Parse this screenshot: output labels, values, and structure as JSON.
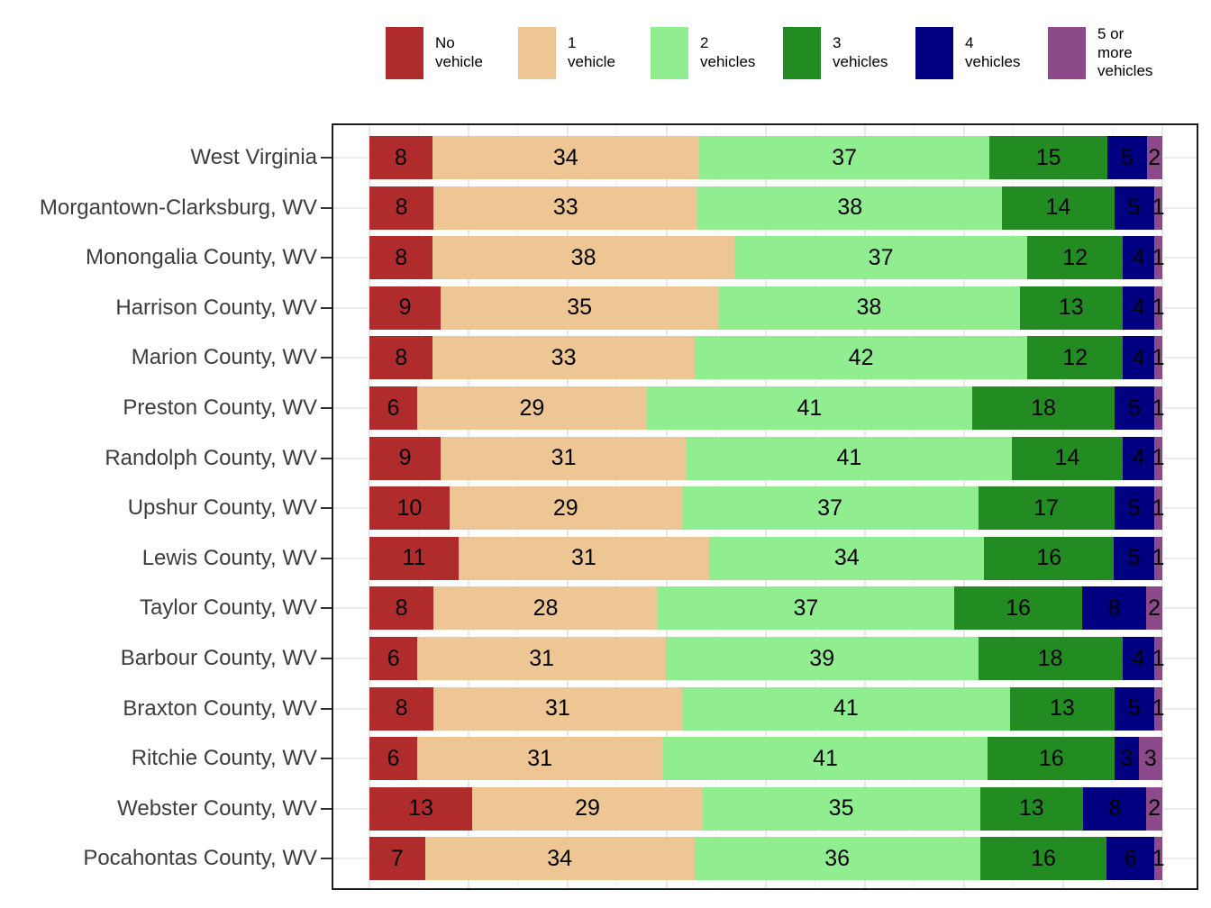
{
  "chart_data": {
    "type": "bar",
    "orientation": "horizontal",
    "stacked": true,
    "grid": true,
    "legend_position": "top",
    "xlim": [
      0,
      100
    ],
    "categories": [
      "West Virginia",
      "Morgantown-Clarksburg, WV",
      "Monongalia County, WV",
      "Harrison County, WV",
      "Marion County, WV",
      "Preston County, WV",
      "Randolph County, WV",
      "Upshur County, WV",
      "Lewis County, WV",
      "Taylor County, WV",
      "Barbour County, WV",
      "Braxton County, WV",
      "Ritchie County, WV",
      "Webster County, WV",
      "Pocahontas County, WV"
    ],
    "series": [
      {
        "name": "No vehicle",
        "color": "#b02c2c",
        "values": [
          8,
          8,
          8,
          9,
          8,
          6,
          9,
          10,
          11,
          8,
          6,
          8,
          6,
          13,
          7
        ]
      },
      {
        "name": "1 vehicle",
        "color": "#edc693",
        "values": [
          34,
          33,
          38,
          35,
          33,
          29,
          31,
          29,
          31,
          28,
          31,
          31,
          31,
          29,
          34
        ]
      },
      {
        "name": "2 vehicles",
        "color": "#90ee90",
        "values": [
          37,
          38,
          37,
          38,
          42,
          41,
          41,
          37,
          34,
          37,
          39,
          41,
          41,
          35,
          36
        ]
      },
      {
        "name": "3 vehicles",
        "color": "#228b22",
        "values": [
          15,
          14,
          12,
          13,
          12,
          18,
          14,
          17,
          16,
          16,
          18,
          13,
          16,
          13,
          16
        ]
      },
      {
        "name": "4 vehicles",
        "color": "#000080",
        "values": [
          5,
          5,
          4,
          4,
          4,
          5,
          4,
          5,
          5,
          8,
          4,
          5,
          3,
          8,
          6
        ]
      },
      {
        "name": "5 or more vehicles",
        "color": "#8d4a8b",
        "values": [
          2,
          1,
          1,
          1,
          1,
          1,
          1,
          1,
          1,
          2,
          1,
          1,
          3,
          2,
          1
        ]
      }
    ]
  }
}
